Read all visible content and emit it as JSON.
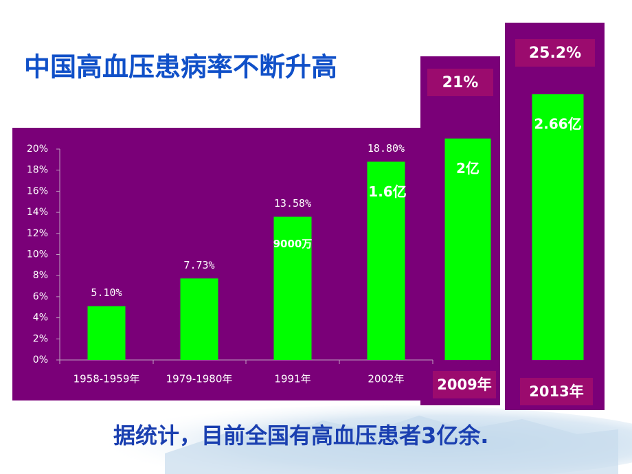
{
  "chart_data": {
    "type": "bar",
    "title": "中国高血压患病率不断升高",
    "categories": [
      "1958-1959年",
      "1979-1980年",
      "1991年",
      "2002年",
      "2009年",
      "2013年"
    ],
    "values": [
      5.1,
      7.73,
      13.58,
      18.8,
      21,
      25.2
    ],
    "value_labels": [
      "5.10%",
      "7.73%",
      "13.58%",
      "18.80%",
      "21%",
      "25.2%"
    ],
    "patients": [
      null,
      null,
      "9000万",
      "1.6亿",
      "2亿",
      "2.66亿"
    ],
    "color": "#00ff00",
    "ylim": [
      0,
      20
    ],
    "yticks": [
      {
        "value": 0,
        "label": "0%"
      },
      {
        "value": 2,
        "label": "2%"
      },
      {
        "value": 4,
        "label": "4%"
      },
      {
        "value": 6,
        "label": "6%"
      },
      {
        "value": 8,
        "label": "8%"
      },
      {
        "value": 10,
        "label": "10%"
      },
      {
        "value": 12,
        "label": "12%"
      },
      {
        "value": 14,
        "label": "14%"
      },
      {
        "value": 16,
        "label": "16%"
      },
      {
        "value": 18,
        "label": "18%"
      },
      {
        "value": 20,
        "label": "20%"
      }
    ],
    "grid": false,
    "footer": "据统计，目前全国有高血压患者3亿余."
  }
}
